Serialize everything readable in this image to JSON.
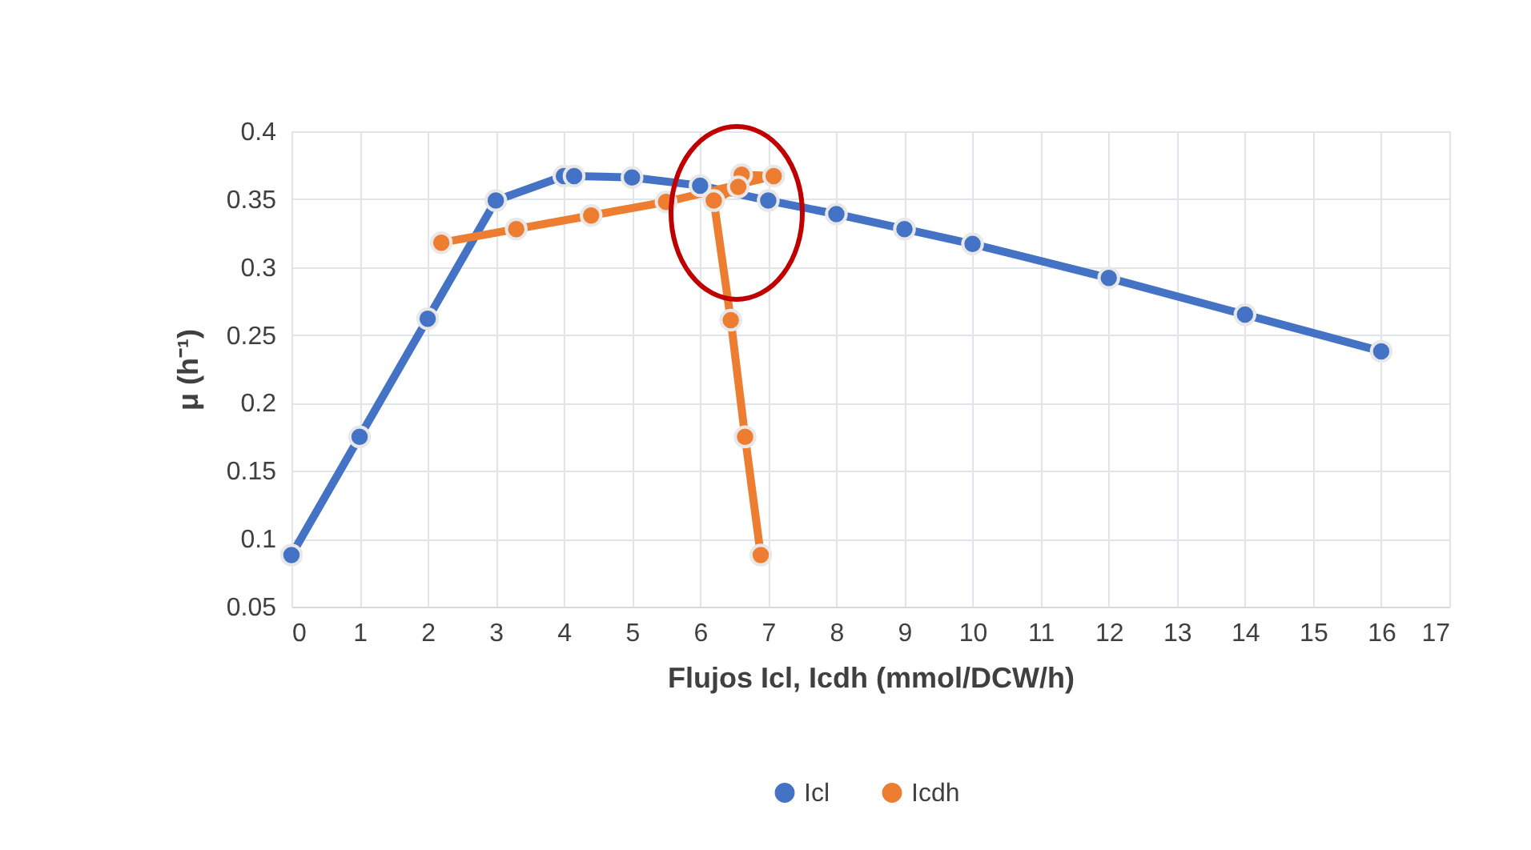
{
  "chart_data": {
    "type": "line",
    "xlabel": "Flujos Icl, Icdh  (mmol/DCW/h)",
    "ylabel": "μ (h⁻¹)",
    "series": [
      {
        "name": "Icl",
        "color": "#4472c4",
        "x": [
          0,
          1,
          2,
          3,
          4,
          4.15,
          5,
          6,
          7,
          8,
          9,
          10,
          12,
          14,
          16
        ],
        "values": [
          0.088,
          0.175,
          0.262,
          0.349,
          0.367,
          0.367,
          0.366,
          0.36,
          0.349,
          0.339,
          0.328,
          0.317,
          0.292,
          0.265,
          0.238
        ]
      },
      {
        "name": "Icdh",
        "color": "#ed7d31",
        "x": [
          2.2,
          3.3,
          4.4,
          5.5,
          7.08,
          6.61,
          6.56,
          6.2,
          6.45,
          6.66,
          6.89
        ],
        "values": [
          0.318,
          0.328,
          0.338,
          0.348,
          0.367,
          0.368,
          0.359,
          0.349,
          0.261,
          0.175,
          0.088
        ]
      }
    ],
    "xlim": [
      0,
      17
    ],
    "xticks": [
      0,
      1,
      2,
      3,
      4,
      5,
      6,
      7,
      8,
      9,
      10,
      11,
      12,
      13,
      14,
      15,
      16,
      17
    ],
    "ylim": [
      0.05,
      0.4
    ],
    "yticks": [
      0.05,
      0.1,
      0.15,
      0.2,
      0.25,
      0.3,
      0.35,
      0.4
    ],
    "grid": true,
    "legend": "bottom",
    "marker": "circle",
    "line_style": "solid"
  }
}
